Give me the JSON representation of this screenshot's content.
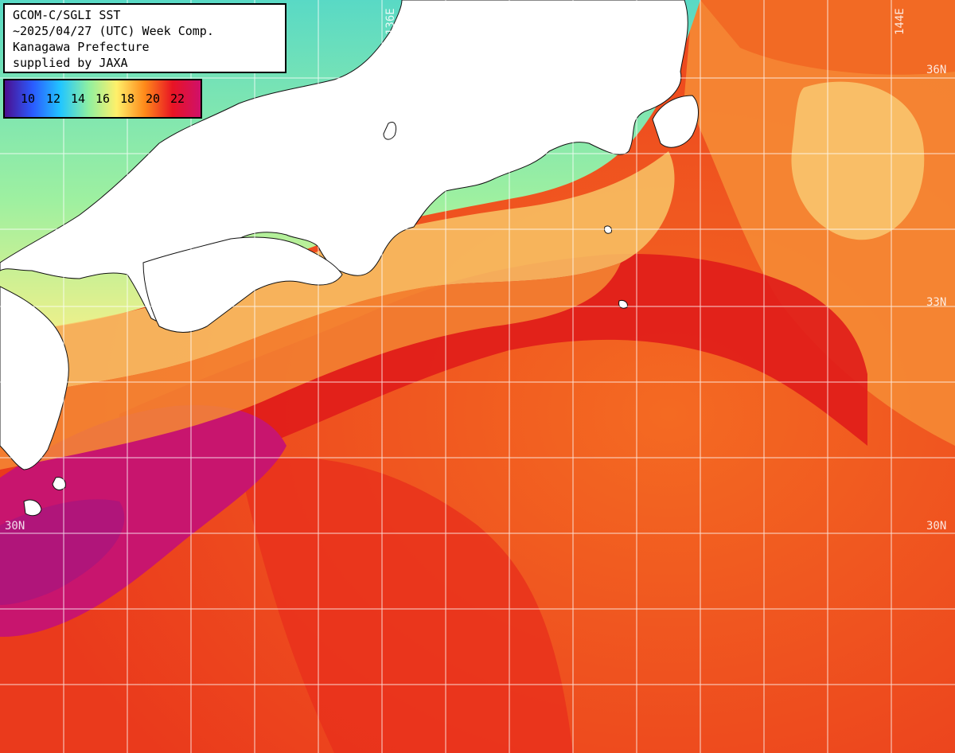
{
  "title": {
    "line1": "GCOM-C/SGLI SST",
    "line2": "~2025/04/27 (UTC) Week Comp.",
    "line3": "Kanagawa Prefecture",
    "line4": "supplied by JAXA"
  },
  "legend": {
    "values": [
      "10",
      "12",
      "14",
      "16",
      "18",
      "20",
      "22"
    ],
    "colors": [
      "#4b0f8f",
      "#2a5bff",
      "#22c6ff",
      "#8ff0a0",
      "#fff06a",
      "#ff8a1a",
      "#e81424",
      "#d0106a"
    ]
  },
  "grid": {
    "lon_labels": [
      "136E",
      "144E"
    ],
    "lat_labels": [
      "36N",
      "33N",
      "30N"
    ],
    "lat_labels_left": [
      "30N"
    ]
  },
  "colors": {
    "land": "#ffffff",
    "cold_water": "#7ee9a8",
    "warm_water": "#f56a24",
    "kuroshio": "#e21a1c",
    "hot_pool": "#c41574",
    "grid_line": "#ffffff"
  }
}
